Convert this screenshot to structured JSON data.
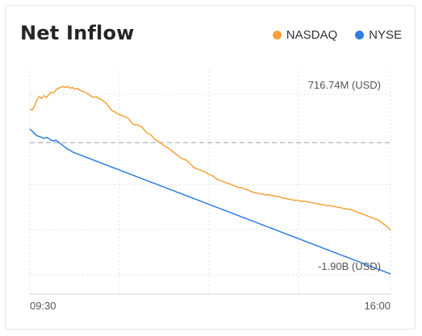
{
  "colors": {
    "nasdaq": "#f5a23a",
    "nyse": "#2f7de1",
    "reference": "#bdbdbd",
    "grid": "#e0e0e0"
  },
  "chart_data": {
    "type": "line",
    "title": "Net Inflow",
    "legend_placement": "top-right",
    "x_ticks": [
      "09:30",
      "16:00"
    ],
    "y_tick_labels": {
      "top": "716.74M (USD)",
      "bottom": "-1.90B (USD)"
    },
    "ylim_millions": [
      -1900,
      716.74
    ],
    "grid": true,
    "series": [
      {
        "name": "NASDAQ",
        "points": [
          [
            0,
            55
          ],
          [
            3,
            58
          ],
          [
            6,
            48
          ],
          [
            9,
            35
          ],
          [
            12,
            28
          ],
          [
            15,
            32
          ],
          [
            18,
            26
          ],
          [
            21,
            30
          ],
          [
            24,
            24
          ],
          [
            27,
            18
          ],
          [
            30,
            20
          ],
          [
            33,
            14
          ],
          [
            36,
            10
          ],
          [
            39,
            8
          ],
          [
            42,
            6
          ],
          [
            45,
            8
          ],
          [
            48,
            6
          ],
          [
            51,
            10
          ],
          [
            54,
            8
          ],
          [
            57,
            12
          ],
          [
            60,
            10
          ],
          [
            63,
            14
          ],
          [
            66,
            16
          ],
          [
            69,
            18
          ],
          [
            72,
            20
          ],
          [
            75,
            24
          ],
          [
            78,
            28
          ],
          [
            81,
            30
          ],
          [
            84,
            28
          ],
          [
            87,
            32
          ],
          [
            90,
            34
          ],
          [
            93,
            38
          ],
          [
            96,
            42
          ],
          [
            99,
            48
          ],
          [
            102,
            56
          ],
          [
            105,
            60
          ],
          [
            108,
            62
          ],
          [
            111,
            66
          ],
          [
            114,
            68
          ],
          [
            117,
            70
          ],
          [
            120,
            72
          ],
          [
            123,
            74
          ],
          [
            126,
            80
          ],
          [
            129,
            86
          ],
          [
            132,
            90
          ],
          [
            135,
            90
          ],
          [
            138,
            92
          ],
          [
            141,
            94
          ],
          [
            144,
            100
          ],
          [
            147,
            106
          ],
          [
            150,
            110
          ],
          [
            153,
            112
          ],
          [
            156,
            118
          ],
          [
            159,
            124
          ],
          [
            162,
            126
          ],
          [
            165,
            130
          ],
          [
            168,
            134
          ],
          [
            171,
            138
          ],
          [
            174,
            140
          ],
          [
            177,
            144
          ],
          [
            180,
            148
          ],
          [
            183,
            152
          ],
          [
            186,
            156
          ],
          [
            189,
            160
          ],
          [
            192,
            164
          ],
          [
            195,
            166
          ],
          [
            198,
            168
          ],
          [
            201,
            172
          ],
          [
            204,
            178
          ],
          [
            207,
            184
          ],
          [
            210,
            186
          ],
          [
            213,
            188
          ],
          [
            216,
            190
          ],
          [
            219,
            192
          ],
          [
            222,
            194
          ],
          [
            225,
            198
          ],
          [
            228,
            200
          ],
          [
            231,
            202
          ],
          [
            234,
            206
          ],
          [
            237,
            210
          ],
          [
            240,
            212
          ],
          [
            243,
            214
          ],
          [
            246,
            216
          ],
          [
            249,
            218
          ],
          [
            252,
            220
          ],
          [
            255,
            222
          ],
          [
            258,
            224
          ],
          [
            261,
            226
          ],
          [
            264,
            228
          ],
          [
            267,
            228
          ],
          [
            270,
            230
          ],
          [
            273,
            232
          ],
          [
            276,
            234
          ],
          [
            279,
            236
          ],
          [
            282,
            238
          ],
          [
            285,
            240
          ],
          [
            288,
            240
          ],
          [
            291,
            242
          ],
          [
            294,
            242
          ],
          [
            297,
            244
          ],
          [
            300,
            244
          ],
          [
            303,
            244
          ],
          [
            306,
            246
          ],
          [
            309,
            246
          ],
          [
            312,
            248
          ],
          [
            315,
            248
          ],
          [
            318,
            250
          ],
          [
            321,
            252
          ],
          [
            324,
            252
          ],
          [
            327,
            254
          ],
          [
            330,
            254
          ],
          [
            333,
            256
          ],
          [
            336,
            256
          ],
          [
            339,
            256
          ],
          [
            342,
            258
          ],
          [
            345,
            258
          ],
          [
            348,
            258
          ],
          [
            351,
            260
          ],
          [
            354,
            260
          ],
          [
            357,
            262
          ],
          [
            360,
            262
          ],
          [
            363,
            264
          ],
          [
            366,
            264
          ],
          [
            369,
            266
          ],
          [
            372,
            266
          ],
          [
            375,
            268
          ],
          [
            378,
            268
          ],
          [
            381,
            268
          ],
          [
            384,
            270
          ],
          [
            387,
            270
          ],
          [
            390,
            272
          ],
          [
            393,
            272
          ],
          [
            396,
            274
          ],
          [
            399,
            274
          ],
          [
            402,
            276
          ],
          [
            405,
            276
          ],
          [
            408,
            278
          ],
          [
            411,
            280
          ],
          [
            414,
            282
          ],
          [
            417,
            284
          ],
          [
            420,
            286
          ],
          [
            423,
            288
          ],
          [
            426,
            290
          ],
          [
            429,
            292
          ],
          [
            432,
            294
          ],
          [
            435,
            296
          ],
          [
            438,
            298
          ],
          [
            441,
            300
          ],
          [
            444,
            304
          ],
          [
            447,
            308
          ],
          [
            450,
            312
          ],
          [
            453,
            316
          ],
          [
            456,
            322
          ]
        ]
      },
      {
        "name": "NYSE",
        "points": [
          [
            0,
            100
          ],
          [
            3,
            104
          ],
          [
            6,
            110
          ],
          [
            9,
            114
          ],
          [
            12,
            116
          ],
          [
            15,
            118
          ],
          [
            18,
            120
          ],
          [
            21,
            118
          ],
          [
            24,
            120
          ],
          [
            27,
            124
          ],
          [
            30,
            126
          ],
          [
            33,
            124
          ],
          [
            36,
            128
          ],
          [
            39,
            132
          ],
          [
            42,
            136
          ],
          [
            45,
            140
          ],
          [
            48,
            144
          ],
          [
            51,
            146
          ],
          [
            54,
            150
          ],
          [
            57,
            152
          ],
          [
            60,
            154
          ],
          [
            63,
            156
          ],
          [
            66,
            158
          ],
          [
            69,
            160
          ],
          [
            72,
            162
          ],
          [
            75,
            164
          ],
          [
            78,
            166
          ],
          [
            81,
            168
          ],
          [
            84,
            170
          ],
          [
            87,
            172
          ],
          [
            90,
            174
          ],
          [
            93,
            176
          ],
          [
            96,
            178
          ],
          [
            99,
            180
          ],
          [
            102,
            182
          ],
          [
            105,
            184
          ],
          [
            108,
            186
          ],
          [
            111,
            188
          ],
          [
            114,
            190
          ],
          [
            117,
            192
          ],
          [
            120,
            194
          ],
          [
            123,
            196
          ],
          [
            126,
            198
          ],
          [
            129,
            200
          ],
          [
            132,
            202
          ],
          [
            135,
            204
          ],
          [
            138,
            206
          ],
          [
            141,
            208
          ],
          [
            144,
            210
          ],
          [
            147,
            212
          ],
          [
            150,
            214
          ],
          [
            153,
            216
          ],
          [
            156,
            218
          ],
          [
            159,
            220
          ],
          [
            162,
            222
          ],
          [
            165,
            224
          ],
          [
            168,
            226
          ],
          [
            171,
            228
          ],
          [
            174,
            230
          ],
          [
            177,
            232
          ],
          [
            180,
            234
          ],
          [
            183,
            236
          ],
          [
            186,
            238
          ],
          [
            189,
            240
          ],
          [
            192,
            242
          ],
          [
            195,
            244
          ],
          [
            198,
            246
          ],
          [
            201,
            248
          ],
          [
            204,
            250
          ],
          [
            207,
            252
          ],
          [
            210,
            254
          ],
          [
            213,
            256
          ],
          [
            216,
            258
          ],
          [
            219,
            260
          ],
          [
            222,
            262
          ],
          [
            225,
            264
          ],
          [
            228,
            266
          ],
          [
            231,
            268
          ],
          [
            234,
            270
          ],
          [
            237,
            272
          ],
          [
            240,
            274
          ],
          [
            243,
            276
          ],
          [
            246,
            278
          ],
          [
            249,
            280
          ],
          [
            252,
            282
          ],
          [
            255,
            284
          ],
          [
            258,
            286
          ],
          [
            261,
            288
          ],
          [
            264,
            290
          ],
          [
            267,
            292
          ],
          [
            270,
            294
          ],
          [
            273,
            296
          ],
          [
            276,
            298
          ],
          [
            279,
            300
          ],
          [
            282,
            302
          ],
          [
            285,
            304
          ],
          [
            288,
            306
          ],
          [
            291,
            308
          ],
          [
            294,
            310
          ],
          [
            297,
            312
          ],
          [
            300,
            314
          ],
          [
            303,
            316
          ],
          [
            306,
            318
          ],
          [
            309,
            320
          ],
          [
            312,
            322
          ],
          [
            315,
            324
          ],
          [
            318,
            326
          ],
          [
            321,
            328
          ],
          [
            324,
            330
          ],
          [
            327,
            332
          ],
          [
            330,
            334
          ],
          [
            333,
            336
          ],
          [
            336,
            338
          ],
          [
            339,
            340
          ],
          [
            342,
            342
          ],
          [
            345,
            344
          ],
          [
            348,
            346
          ],
          [
            351,
            348
          ],
          [
            354,
            350
          ],
          [
            357,
            352
          ],
          [
            360,
            354
          ],
          [
            363,
            356
          ],
          [
            366,
            358
          ],
          [
            369,
            360
          ],
          [
            372,
            362
          ],
          [
            375,
            364
          ],
          [
            378,
            366
          ],
          [
            381,
            368
          ],
          [
            384,
            370
          ],
          [
            387,
            372
          ],
          [
            390,
            374
          ],
          [
            393,
            376
          ],
          [
            396,
            378
          ],
          [
            399,
            380
          ],
          [
            402,
            382
          ],
          [
            405,
            384
          ],
          [
            408,
            386
          ],
          [
            411,
            388
          ],
          [
            414,
            390
          ],
          [
            417,
            392
          ],
          [
            420,
            394
          ],
          [
            423,
            396
          ],
          [
            426,
            398
          ],
          [
            429,
            400
          ],
          [
            432,
            402
          ],
          [
            435,
            404
          ],
          [
            438,
            406
          ],
          [
            441,
            408
          ],
          [
            444,
            410
          ],
          [
            447,
            412
          ],
          [
            450,
            414
          ],
          [
            453,
            416
          ],
          [
            456,
            418
          ]
        ]
      }
    ]
  }
}
